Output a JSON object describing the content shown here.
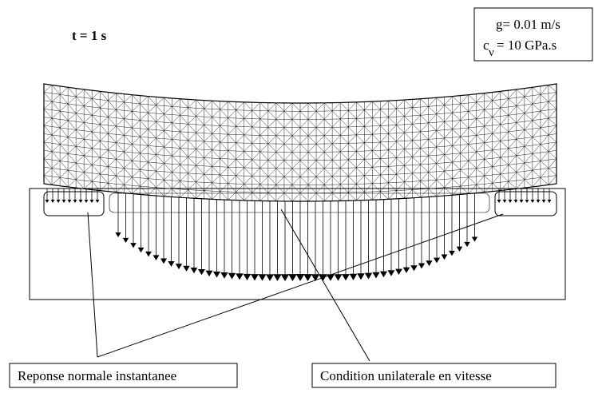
{
  "time_label": "t = 1 s",
  "parameters": {
    "g": "g= 0.01 m/s",
    "c_prefix": "c",
    "c_sub": "ν",
    "c_rest": "=  10 GPa.s"
  },
  "labels": [
    "Reponse normale instantanee",
    "Condition unilaterale en vitesse"
  ]
}
